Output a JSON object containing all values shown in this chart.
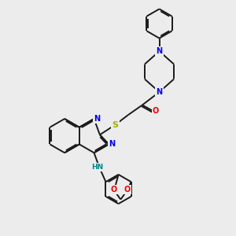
{
  "background_color": "#ececec",
  "bond_color": "#1a1a1a",
  "atom_colors": {
    "N": "#0000ee",
    "O": "#ee0000",
    "S": "#aaaa00",
    "NH": "#008888",
    "C": "#1a1a1a"
  },
  "lw": 1.4,
  "fs": 7.0,
  "figsize": [
    3.0,
    3.0
  ],
  "dpi": 100
}
